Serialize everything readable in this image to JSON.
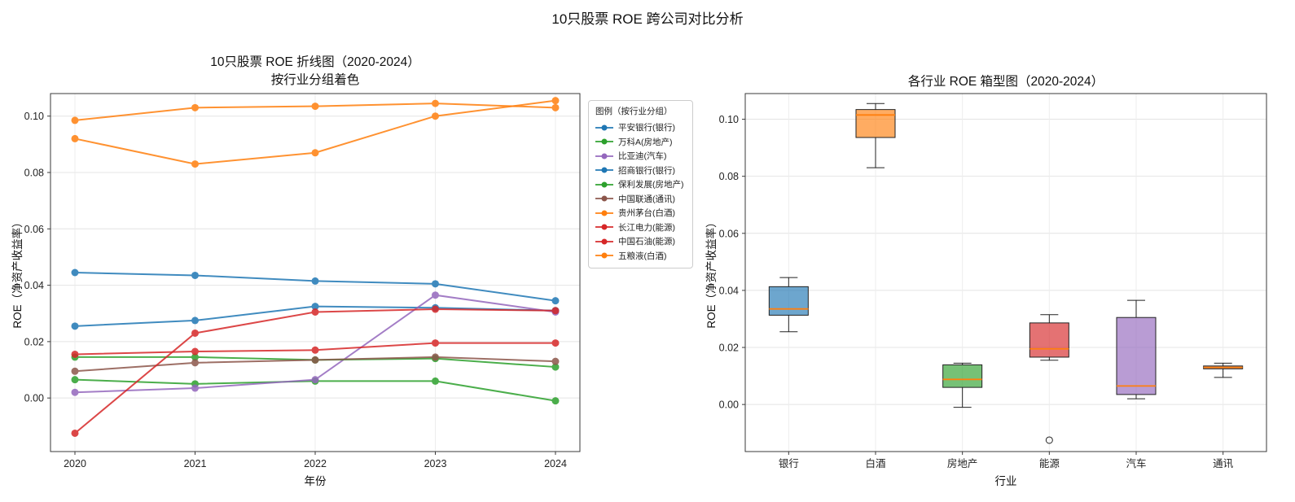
{
  "main_title": "10只股票 ROE 跨公司对比分析",
  "chart_data": [
    {
      "type": "line",
      "title": "10只股票 ROE 折线图（2020-2024）",
      "subtitle": "按行业分组着色",
      "xlabel": "年份",
      "ylabel": "ROE（净资产收益率）",
      "legend_title": "图例（按行业分组）",
      "legend_position": "right",
      "grid": true,
      "x": [
        2020,
        2021,
        2022,
        2023,
        2024
      ],
      "ylim": [
        -0.019,
        0.108
      ],
      "yticks": [
        0.0,
        0.02,
        0.04,
        0.06,
        0.08,
        0.1
      ],
      "series": [
        {
          "name": "平安银行(银行)",
          "color": "#1f77b4",
          "values": [
            0.0255,
            0.0275,
            0.0325,
            0.032,
            0.031
          ]
        },
        {
          "name": "万科A(房地产)",
          "color": "#2ca02c",
          "values": [
            0.0065,
            0.005,
            0.006,
            0.006,
            -0.001
          ]
        },
        {
          "name": "比亚迪(汽车)",
          "color": "#9467bd",
          "values": [
            0.002,
            0.0035,
            0.0065,
            0.0365,
            0.0305
          ]
        },
        {
          "name": "招商银行(银行)",
          "color": "#1f77b4",
          "values": [
            0.0445,
            0.0435,
            0.0415,
            0.0405,
            0.0345
          ]
        },
        {
          "name": "保利发展(房地产)",
          "color": "#2ca02c",
          "values": [
            0.0145,
            0.0145,
            0.0135,
            0.014,
            0.011
          ]
        },
        {
          "name": "中国联通(通讯)",
          "color": "#8c564b",
          "values": [
            0.0095,
            0.0125,
            0.0135,
            0.0145,
            0.013
          ]
        },
        {
          "name": "贵州茅台(白酒)",
          "color": "#ff7f0e",
          "values": [
            0.0985,
            0.103,
            0.1035,
            0.1045,
            0.103
          ]
        },
        {
          "name": "长江电力(能源)",
          "color": "#d62728",
          "values": [
            0.0155,
            0.0165,
            0.017,
            0.0195,
            0.0195
          ]
        },
        {
          "name": "中国石油(能源)",
          "color": "#d62728",
          "values": [
            -0.0125,
            0.023,
            0.0305,
            0.0315,
            0.031
          ]
        },
        {
          "name": "五粮液(白酒)",
          "color": "#ff7f0e",
          "values": [
            0.092,
            0.083,
            0.087,
            0.1,
            0.1055
          ]
        }
      ]
    },
    {
      "type": "box",
      "title": "各行业 ROE 箱型图（2020-2024）",
      "xlabel": "行业",
      "ylabel": "ROE（净资产收益率）",
      "grid": true,
      "categories": [
        "银行",
        "白酒",
        "房地产",
        "能源",
        "汽车",
        "通讯"
      ],
      "ylim": [
        -0.0165,
        0.109
      ],
      "yticks": [
        0.0,
        0.02,
        0.04,
        0.06,
        0.08,
        0.1
      ],
      "median_color": "#ff7f0e",
      "boxes": [
        {
          "category": "银行",
          "color": "#1f77b4",
          "low": 0.0255,
          "q1": 0.0313,
          "median": 0.0335,
          "q3": 0.0413,
          "high": 0.0445,
          "outliers": []
        },
        {
          "category": "白酒",
          "color": "#ff7f0e",
          "low": 0.083,
          "q1": 0.0936,
          "median": 0.1015,
          "q3": 0.1034,
          "high": 0.1055,
          "outliers": []
        },
        {
          "category": "房地产",
          "color": "#2ca02c",
          "low": -0.001,
          "q1": 0.006,
          "median": 0.0088,
          "q3": 0.0139,
          "high": 0.0145,
          "outliers": []
        },
        {
          "category": "能源",
          "color": "#d62728",
          "low": 0.0155,
          "q1": 0.0166,
          "median": 0.0195,
          "q3": 0.0286,
          "high": 0.0315,
          "outliers": [
            -0.0125
          ]
        },
        {
          "category": "汽车",
          "color": "#9467bd",
          "low": 0.002,
          "q1": 0.0035,
          "median": 0.0065,
          "q3": 0.0305,
          "high": 0.0365,
          "outliers": []
        },
        {
          "category": "通讯",
          "color": "#8c564b",
          "low": 0.0095,
          "q1": 0.0125,
          "median": 0.013,
          "q3": 0.0135,
          "high": 0.0145,
          "outliers": []
        }
      ]
    }
  ]
}
